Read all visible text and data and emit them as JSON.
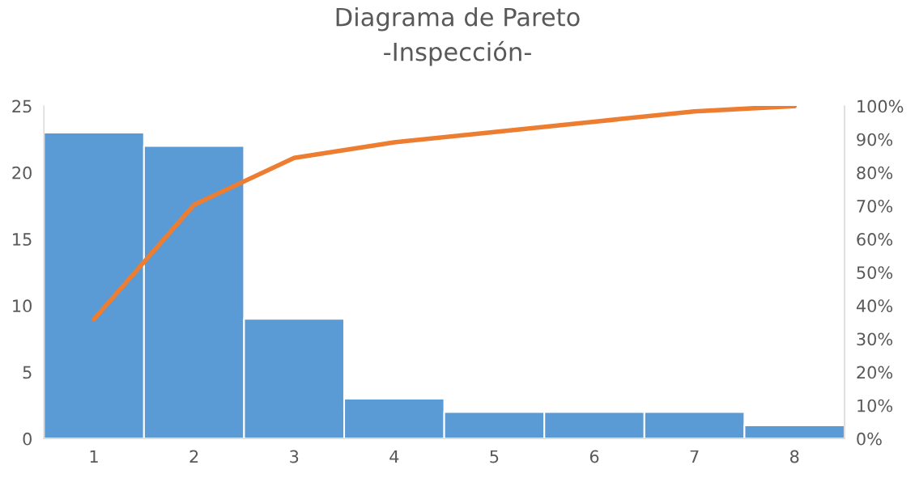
{
  "chart_data": {
    "type": "bar",
    "title": "Diagrama de Pareto\n-Inspección-",
    "categories": [
      "1",
      "2",
      "3",
      "4",
      "5",
      "6",
      "7",
      "8"
    ],
    "series": [
      {
        "color": "#5b9bd5",
        "values": [
          23,
          22,
          9,
          3,
          2,
          2,
          2,
          1
        ]
      },
      {
        "type": "line",
        "axis": "y2",
        "color": "#ed7d31",
        "values": [
          35.9,
          70.3,
          84.4,
          89.1,
          92.2,
          95.3,
          98.4,
          100
        ]
      }
    ],
    "ylim": [
      0,
      25
    ],
    "yticks": [
      0,
      5,
      10,
      15,
      20,
      25
    ],
    "y2lim": [
      0,
      100
    ],
    "y2ticks": [
      {
        "value": 0,
        "label": "0%"
      },
      {
        "value": 10,
        "label": "10%"
      },
      {
        "value": 20,
        "label": "20%"
      },
      {
        "value": 30,
        "label": "30%"
      },
      {
        "value": 40,
        "label": "40%"
      },
      {
        "value": 50,
        "label": "50%"
      },
      {
        "value": 60,
        "label": "60%"
      },
      {
        "value": 70,
        "label": "70%"
      },
      {
        "value": 80,
        "label": "80%"
      },
      {
        "value": 90,
        "label": "90%"
      },
      {
        "value": 100,
        "label": "100%"
      }
    ],
    "grid": false
  }
}
